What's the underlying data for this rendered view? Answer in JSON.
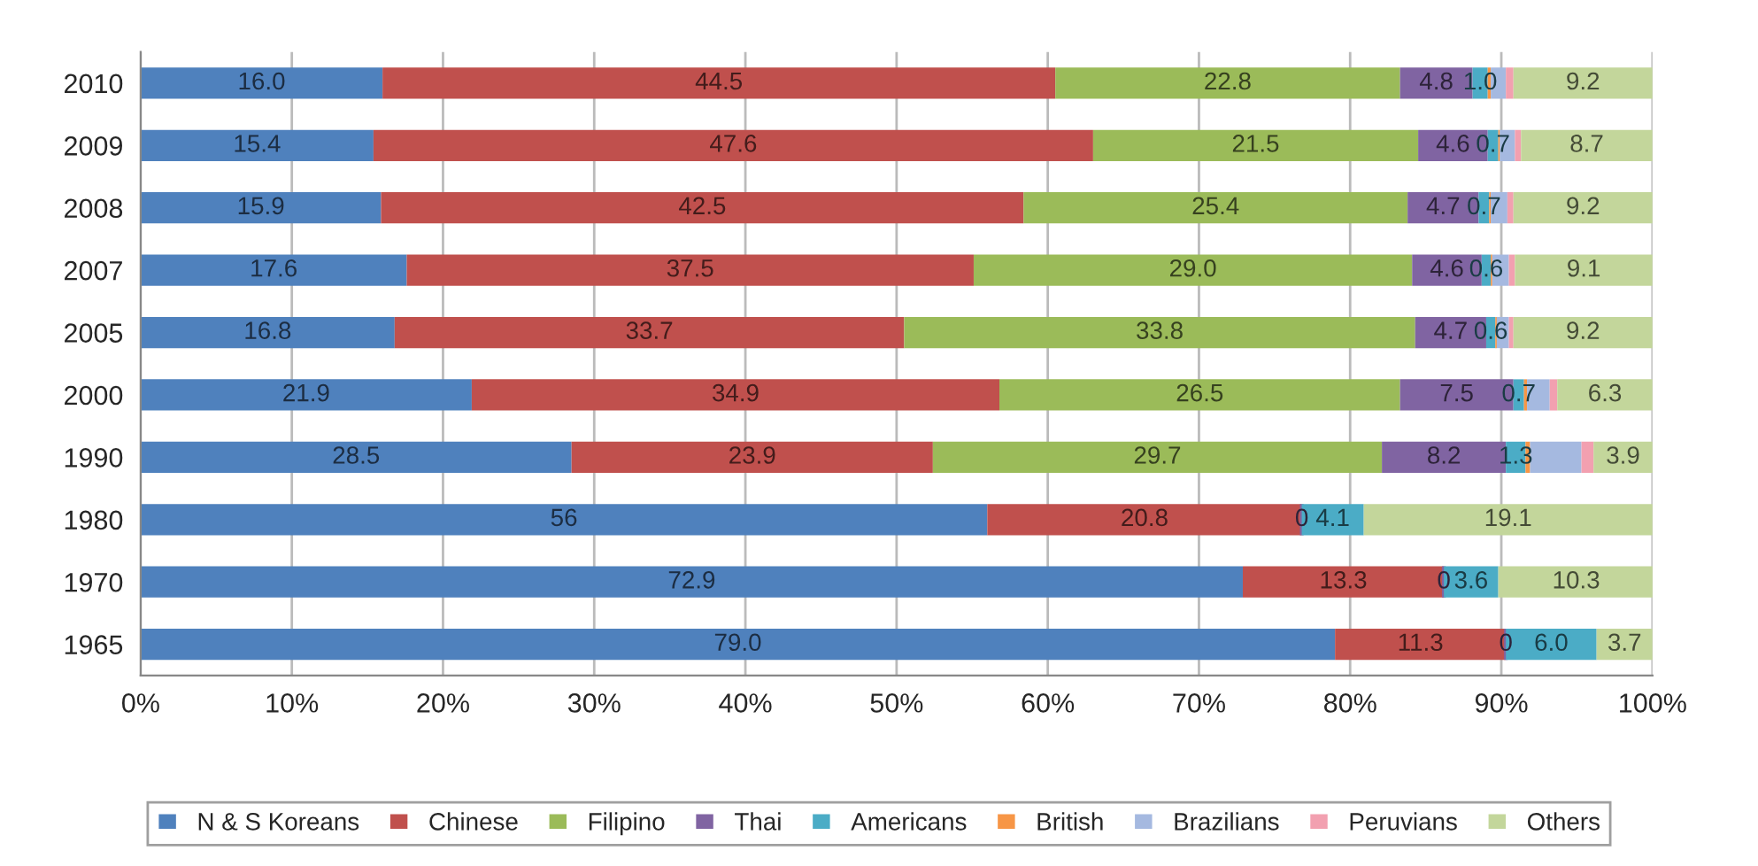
{
  "chart_data": {
    "type": "bar",
    "orientation": "horizontal",
    "stacked": true,
    "categories": [
      "2010",
      "2009",
      "2008",
      "2007",
      "2005",
      "2000",
      "1990",
      "1980",
      "1970",
      "1965"
    ],
    "series": [
      {
        "name": "N & S Koreans",
        "color": "#4f81bd",
        "values": [
          16.0,
          15.4,
          15.9,
          17.6,
          16.8,
          21.9,
          28.5,
          56,
          72.9,
          79.0
        ],
        "value_labels": [
          "16.0",
          "15.4",
          "15.9",
          "17.6",
          "16.8",
          "21.9",
          "28.5",
          "56",
          "72.9",
          "79.0"
        ]
      },
      {
        "name": "Chinese",
        "color": "#c0504d",
        "values": [
          44.5,
          47.6,
          42.5,
          37.5,
          33.7,
          34.9,
          23.9,
          20.8,
          13.3,
          11.3
        ],
        "value_labels": [
          "44.5",
          "47.6",
          "42.5",
          "37.5",
          "33.7",
          "34.9",
          "23.9",
          "20.8",
          "13.3",
          "11.3"
        ]
      },
      {
        "name": "Filipino",
        "color": "#9bbb59",
        "values": [
          22.8,
          21.5,
          25.4,
          29.0,
          33.8,
          26.5,
          29.7,
          null,
          null,
          null
        ],
        "value_labels": [
          "22.8",
          "21.5",
          "25.4",
          "29.0",
          "33.8",
          "26.5",
          "29.7",
          null,
          null,
          null
        ]
      },
      {
        "name": "Thai",
        "color": "#8064a2",
        "values": [
          4.8,
          4.6,
          4.7,
          4.6,
          4.7,
          7.5,
          8.2,
          0,
          0,
          0
        ],
        "value_labels": [
          "4.8",
          "4.6",
          "4.7",
          "4.6",
          "4.7",
          "7.5",
          "8.2",
          "0",
          "0",
          "0"
        ]
      },
      {
        "name": "Americans",
        "color": "#4bacc6",
        "values": [
          1.0,
          0.7,
          0.7,
          0.6,
          0.6,
          0.7,
          1.3,
          4.1,
          3.6,
          6.0
        ],
        "value_labels": [
          "1.0",
          "0.7",
          "0.7",
          "0.6",
          "0.6",
          "0.7",
          "1.3",
          "4.1",
          "3.6",
          "6.0"
        ]
      },
      {
        "name": "British",
        "color": "#f79646",
        "values": [
          0.2,
          0.1,
          0.1,
          0.1,
          0.1,
          0.2,
          0.3,
          null,
          null,
          null
        ],
        "value_labels": [
          null,
          null,
          null,
          null,
          null,
          null,
          null,
          null,
          null,
          null
        ]
      },
      {
        "name": "Brazilians",
        "color": "#a5b9e0",
        "values": [
          1.0,
          1.0,
          1.1,
          1.1,
          0.8,
          1.5,
          3.4,
          null,
          null,
          null
        ],
        "value_labels": [
          null,
          null,
          null,
          null,
          null,
          null,
          null,
          null,
          null,
          null
        ]
      },
      {
        "name": "Peruvians",
        "color": "#f2a0b0",
        "values": [
          0.5,
          0.4,
          0.4,
          0.4,
          0.3,
          0.5,
          0.8,
          null,
          null,
          null
        ],
        "value_labels": [
          null,
          null,
          null,
          null,
          null,
          null,
          null,
          null,
          null,
          null
        ]
      },
      {
        "name": "Others",
        "color": "#c3d69b",
        "values": [
          9.2,
          8.7,
          9.2,
          9.1,
          9.2,
          6.3,
          3.9,
          19.1,
          10.3,
          3.7
        ],
        "value_labels": [
          "9.2",
          "8.7",
          "9.2",
          "9.1",
          "9.2",
          "6.3",
          "3.9",
          "19.1",
          "10.3",
          "3.7"
        ]
      }
    ],
    "xlim": [
      0,
      100
    ],
    "xticks": [
      {
        "value": 0,
        "label": "0%"
      },
      {
        "value": 10,
        "label": "10%"
      },
      {
        "value": 20,
        "label": "20%"
      },
      {
        "value": 30,
        "label": "30%"
      },
      {
        "value": 40,
        "label": "40%"
      },
      {
        "value": 50,
        "label": "50%"
      },
      {
        "value": 60,
        "label": "60%"
      },
      {
        "value": 70,
        "label": "70%"
      },
      {
        "value": 80,
        "label": "80%"
      },
      {
        "value": 90,
        "label": "90%"
      },
      {
        "value": 100,
        "label": "100%"
      }
    ],
    "grid": "x",
    "legend": "bottom"
  }
}
